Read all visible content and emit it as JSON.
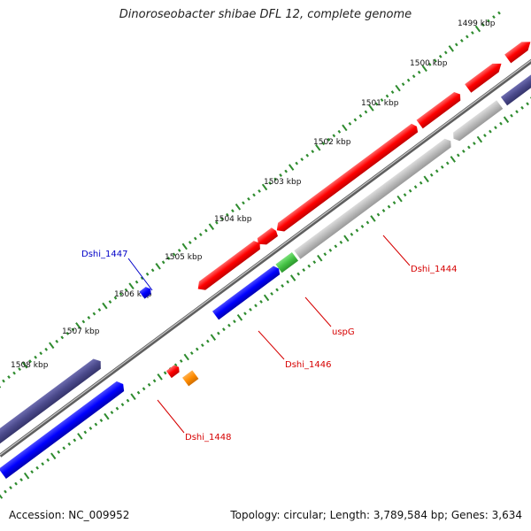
{
  "title": "Dinoroseobacter shibae DFL 12, complete genome",
  "footer": {
    "accession": "Accession: NC_009952",
    "summary": "Topology: circular; Length: 3,789,584 bp; Genes: 3,634"
  },
  "scale": {
    "tick_labels": [
      "1499 kbp",
      "1500 kbp",
      "1501 kbp",
      "1502 kbp",
      "1503 kbp",
      "1504 kbp",
      "1505 kbp",
      "1506 kbp",
      "1507 kbp",
      "1508 kbp"
    ]
  },
  "genes": [
    {
      "name": "Dshi_1444",
      "color": "#d60000"
    },
    {
      "name": "uspG",
      "color": "#d60000"
    },
    {
      "name": "Dshi_1446",
      "color": "#d60000"
    },
    {
      "name": "Dshi_1447",
      "color": "#0000c8"
    },
    {
      "name": "Dshi_1448",
      "color": "#d60000"
    }
  ],
  "colors": {
    "backbone": "#777777",
    "forward_cds": "#ff0000",
    "reverse_cds": "#0000ff",
    "pseudo_or_other": "#bbbbbb",
    "dark_feature": "#4b4a8c",
    "uspG_feature": "#44c244",
    "small_feature": "#ff8c00",
    "tick_marks": "#2e8b2e"
  }
}
